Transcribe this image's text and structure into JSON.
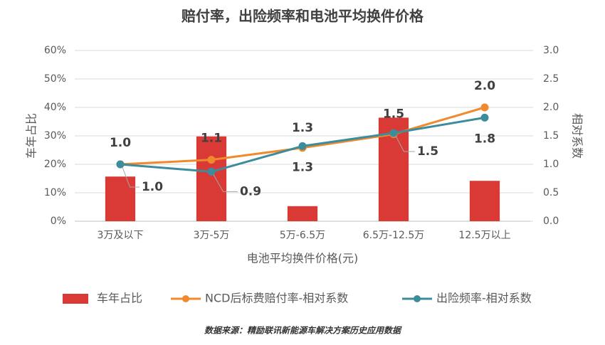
{
  "chart_data": {
    "type": "combo",
    "title": "赔付率，出险频率和电池平均换件价格",
    "x_label": "电池平均换件价格(元)",
    "y_label": "车年占比",
    "y2_label": "相对系数",
    "source": "数据来源：精励联讯新能源车解决方案历史应用数据",
    "categories": [
      "3万及以下",
      "3万-5万",
      "5万-6.5万",
      "6.5万-12.5万",
      "12.5万以上"
    ],
    "ylim": [
      0,
      60
    ],
    "yticks": [
      {
        "value": 0,
        "label": "0%"
      },
      {
        "value": 10,
        "label": "10%"
      },
      {
        "value": 20,
        "label": "20%"
      },
      {
        "value": 30,
        "label": "30%"
      },
      {
        "value": 40,
        "label": "40%"
      },
      {
        "value": 50,
        "label": "50%"
      },
      {
        "value": 60,
        "label": "60%"
      }
    ],
    "y2lim": [
      0,
      3
    ],
    "y2ticks": [
      {
        "value": 0,
        "label": "0.0"
      },
      {
        "value": 0.5,
        "label": "0.5"
      },
      {
        "value": 1,
        "label": "1.0"
      },
      {
        "value": 1.5,
        "label": "1.5"
      },
      {
        "value": 2,
        "label": "2.0"
      },
      {
        "value": 2.5,
        "label": "2.5"
      },
      {
        "value": 3,
        "label": "3.0"
      }
    ],
    "grid": true,
    "series": [
      {
        "name": "车年占比",
        "type": "bar",
        "color": "#d93a35",
        "values": [
          15.7,
          29.8,
          5.3,
          36.4,
          14.2
        ]
      },
      {
        "name": "NCD后标费赔付率-相对系数",
        "type": "line",
        "axis": "y2",
        "color": "#f08a2c",
        "values": [
          1.0,
          1.08,
          1.29,
          1.53,
          2.0
        ],
        "value_labels": [
          "1.0",
          "1.1",
          "1.3",
          "1.5",
          "2.0"
        ]
      },
      {
        "name": "出险频率-相对系数",
        "type": "line",
        "axis": "y2",
        "color": "#3c8c9c",
        "values": [
          1.0,
          0.87,
          1.32,
          1.55,
          1.82
        ],
        "value_labels": [
          "1.0",
          "0.9",
          "1.3",
          "1.5",
          "1.8"
        ]
      }
    ]
  }
}
